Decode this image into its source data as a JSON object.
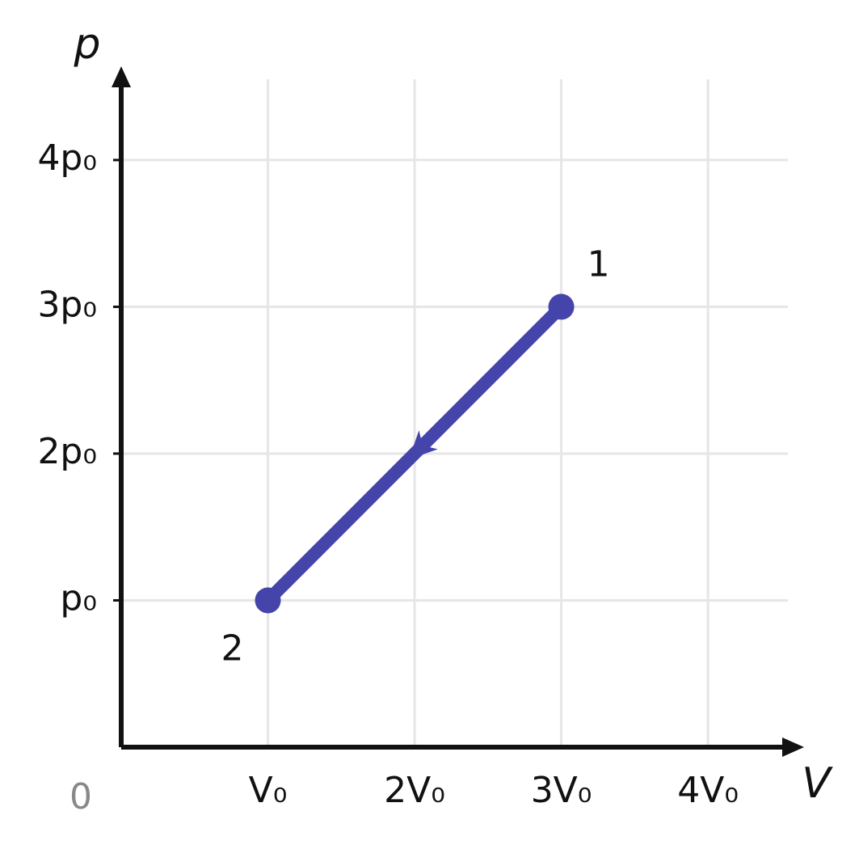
{
  "chart_data": {
    "type": "line",
    "x_label": "V",
    "y_label": "p",
    "origin_label": "0",
    "x": [
      3,
      1
    ],
    "series": [
      {
        "color": "#4444aa",
        "values": [
          3,
          1
        ],
        "point_labels": [
          "1",
          "2"
        ]
      }
    ],
    "xlim": [
      0,
      4.6
    ],
    "ylim": [
      0,
      4.6
    ],
    "xticks": [
      {
        "value": 1,
        "label": "V₀"
      },
      {
        "value": 2,
        "label": "2V₀"
      },
      {
        "value": 3,
        "label": "3V₀"
      },
      {
        "value": 4,
        "label": "4V₀"
      }
    ],
    "yticks": [
      {
        "value": 1,
        "label": "p₀"
      },
      {
        "value": 2,
        "label": "2p₀"
      },
      {
        "value": 3,
        "label": "3p₀"
      },
      {
        "value": 4,
        "label": "4p₀"
      }
    ],
    "grid": true
  }
}
